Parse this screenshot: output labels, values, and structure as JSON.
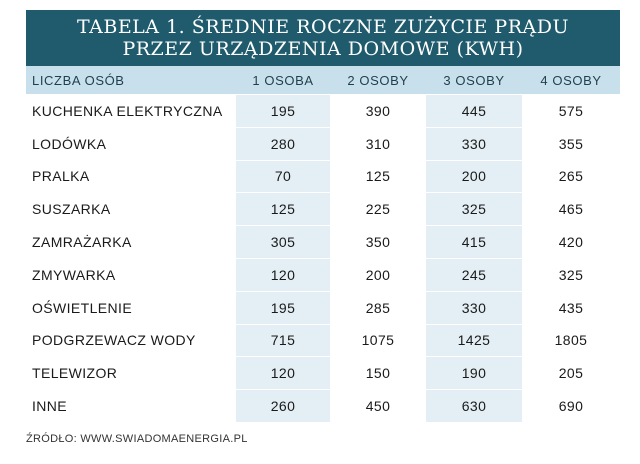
{
  "title": {
    "line1": "TABELA 1. ŚREDNIE ROCZNE ZUŻYCIE PRĄDU",
    "line2": "PRZEZ URZĄDZENIA DOMOWE (KWH)"
  },
  "header": [
    "LICZBA OSÓB",
    "1 OSOBA",
    "2 OSOBY",
    "3 OSOBY",
    "4 OSOBY"
  ],
  "rows": [
    [
      "KUCHENKA ELEKTRYCZNA",
      "195",
      "390",
      "445",
      "575"
    ],
    [
      "LODÓWKA",
      "280",
      "310",
      "330",
      "355"
    ],
    [
      "PRALKA",
      "70",
      "125",
      "200",
      "265"
    ],
    [
      "SUSZARKA",
      "125",
      "225",
      "325",
      "465"
    ],
    [
      "ZAMRAŻARKA",
      "305",
      "350",
      "415",
      "420"
    ],
    [
      "ZMYWARKA",
      "120",
      "200",
      "245",
      "325"
    ],
    [
      "OŚWIETLENIE",
      "195",
      "285",
      "330",
      "435"
    ],
    [
      "PODGRZEWACZ WODY",
      "715",
      "1075",
      "1425",
      "1805"
    ],
    [
      "TELEWIZOR",
      "120",
      "150",
      "190",
      "205"
    ],
    [
      "INNE",
      "260",
      "450",
      "630",
      "690"
    ]
  ],
  "source": "ŹRÓDŁO: WWW.SWIADOMAENERGIA.PL",
  "colors": {
    "title_bg": "#1f5b6c",
    "header_bg": "#c7e0ec",
    "shade_bg": "#e3eff5"
  }
}
